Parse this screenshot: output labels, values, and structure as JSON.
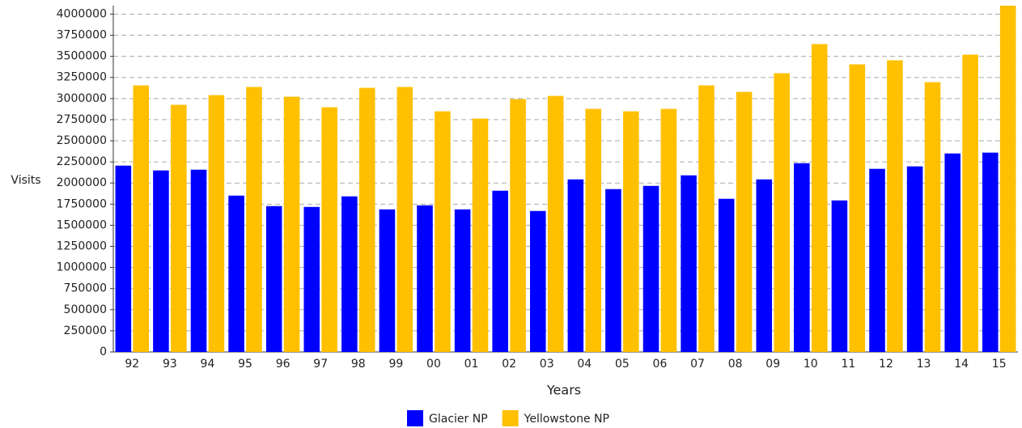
{
  "chart_data": {
    "type": "bar",
    "x_label": "Years",
    "y_label": "Visits",
    "categories": [
      "92",
      "93",
      "94",
      "95",
      "96",
      "97",
      "98",
      "99",
      "00",
      "01",
      "02",
      "03",
      "04",
      "05",
      "06",
      "07",
      "08",
      "09",
      "10",
      "11",
      "12",
      "13",
      "14",
      "15"
    ],
    "series": [
      {
        "name": "Glacier NP",
        "color": "#0000ff",
        "values": [
          2206000,
          2149000,
          2158000,
          1851000,
          1727000,
          1717000,
          1842000,
          1688000,
          1736000,
          1688000,
          1909000,
          1669000,
          2043000,
          1928000,
          1966000,
          2091000,
          1813000,
          2043000,
          2235000,
          1794000,
          2168000,
          2197000,
          2350000,
          2360000
        ]
      },
      {
        "name": "Yellowstone NP",
        "color": "#ffc000",
        "values": [
          3156000,
          2926000,
          3041000,
          3137000,
          3022000,
          2897000,
          3127000,
          3137000,
          2849000,
          2763000,
          2993000,
          3031000,
          2878000,
          2849000,
          2878000,
          3156000,
          3079000,
          3300000,
          3645000,
          3405000,
          3453000,
          3194000,
          3520000,
          4100000
        ]
      }
    ],
    "ylim": [
      0,
      4100000
    ],
    "yticks": [
      0,
      250000,
      500000,
      750000,
      1000000,
      1250000,
      1500000,
      1750000,
      2000000,
      2250000,
      2500000,
      2750000,
      3000000,
      3250000,
      3500000,
      3750000,
      4000000
    ],
    "grid": true,
    "legend": "bottom"
  }
}
